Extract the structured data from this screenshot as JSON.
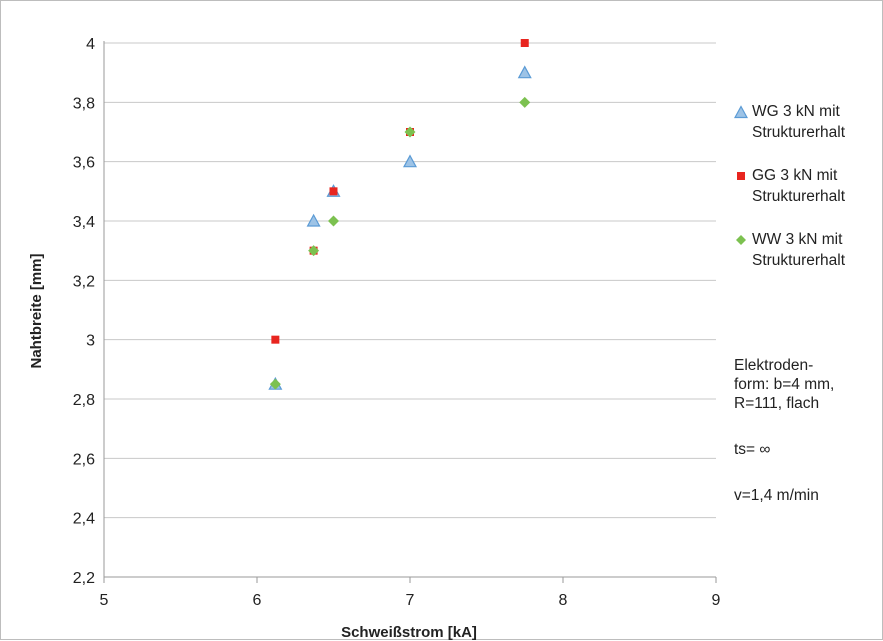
{
  "chart_data": {
    "type": "scatter",
    "xlabel": "Schweißstrom [kA]",
    "ylabel": "Nahtbreite [mm]",
    "xlim": [
      5,
      9
    ],
    "ylim": [
      2.2,
      4.0
    ],
    "x_ticks": [
      "5",
      "6",
      "7",
      "8",
      "9"
    ],
    "y_ticks": [
      "2,2",
      "2,4",
      "2,6",
      "2,8",
      "3",
      "3,2",
      "3,4",
      "3,6",
      "3,8",
      "4"
    ],
    "grid": "horizontal",
    "legend_position": "right",
    "series": [
      {
        "name_line1": "WG 3 kN mit",
        "name_line2": "Strukturerhalt",
        "marker": "triangle",
        "color": "#9dc3e6",
        "stroke": "#5b9bd5",
        "points": [
          [
            6.12,
            2.85
          ],
          [
            6.37,
            3.4
          ],
          [
            6.5,
            3.5
          ],
          [
            7.0,
            3.6
          ],
          [
            7.75,
            3.9
          ]
        ]
      },
      {
        "name_line1": "GG 3 kN mit",
        "name_line2": "Strukturerhalt",
        "marker": "square",
        "color": "#e8251f",
        "stroke": "#e8251f",
        "points": [
          [
            6.12,
            3.0
          ],
          [
            6.37,
            3.3
          ],
          [
            6.5,
            3.5
          ],
          [
            7.0,
            3.7
          ],
          [
            7.75,
            4.0
          ]
        ]
      },
      {
        "name_line1": "WW 3 kN mit",
        "name_line2": "Strukturerhalt",
        "marker": "diamond",
        "color": "#7cc150",
        "stroke": "#7cc150",
        "points": [
          [
            6.12,
            2.85
          ],
          [
            6.37,
            3.3
          ],
          [
            6.5,
            3.4
          ],
          [
            7.0,
            3.7
          ],
          [
            7.75,
            3.8
          ]
        ]
      }
    ]
  },
  "notes": {
    "electrode_line1": "Elektroden-",
    "electrode_line2": "form: b=4 mm,",
    "electrode_line3": "R=111, flach",
    "ts": "ts= ∞",
    "v": "v=1,4 m/min"
  }
}
